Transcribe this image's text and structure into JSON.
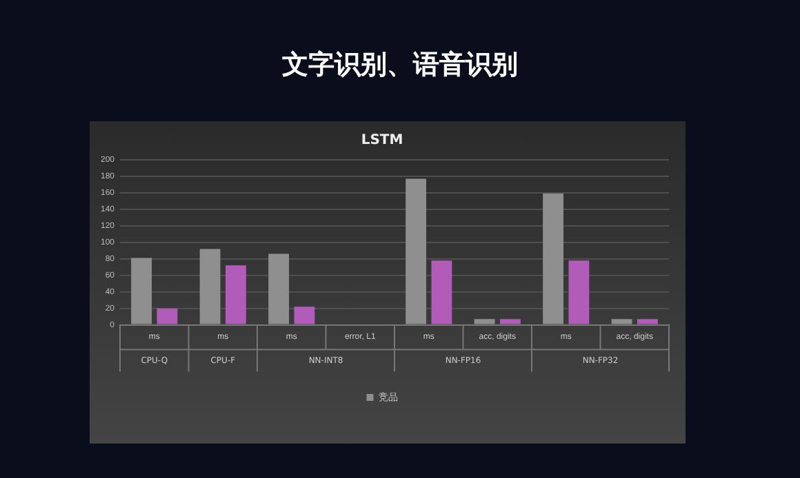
{
  "chart_data": {
    "type": "bar",
    "title": "文字识别、语音识别",
    "subtitle": "LSTM",
    "categories": [
      "ms",
      "ms",
      "ms",
      "error, L1",
      "ms",
      "acc, digits",
      "ms",
      "acc, digits"
    ],
    "annotations": [
      "CPU-Q",
      "CPU-F",
      "NN-INT8",
      "NN-FP16",
      "NN-FP32"
    ],
    "series": [
      {
        "name": "竞品",
        "color": "#8f8f8f",
        "values": [
          81,
          92,
          86,
          1,
          177,
          7,
          159,
          7
        ]
      },
      {
        "color": "#b05cb8",
        "values": [
          20,
          72,
          22,
          1,
          78,
          7,
          78,
          7
        ]
      }
    ],
    "ylim": [
      0,
      200
    ],
    "yticks": [
      0,
      20,
      40,
      60,
      80,
      100,
      120,
      140,
      160,
      180,
      200
    ],
    "grid": "y",
    "legend": "bottom"
  }
}
